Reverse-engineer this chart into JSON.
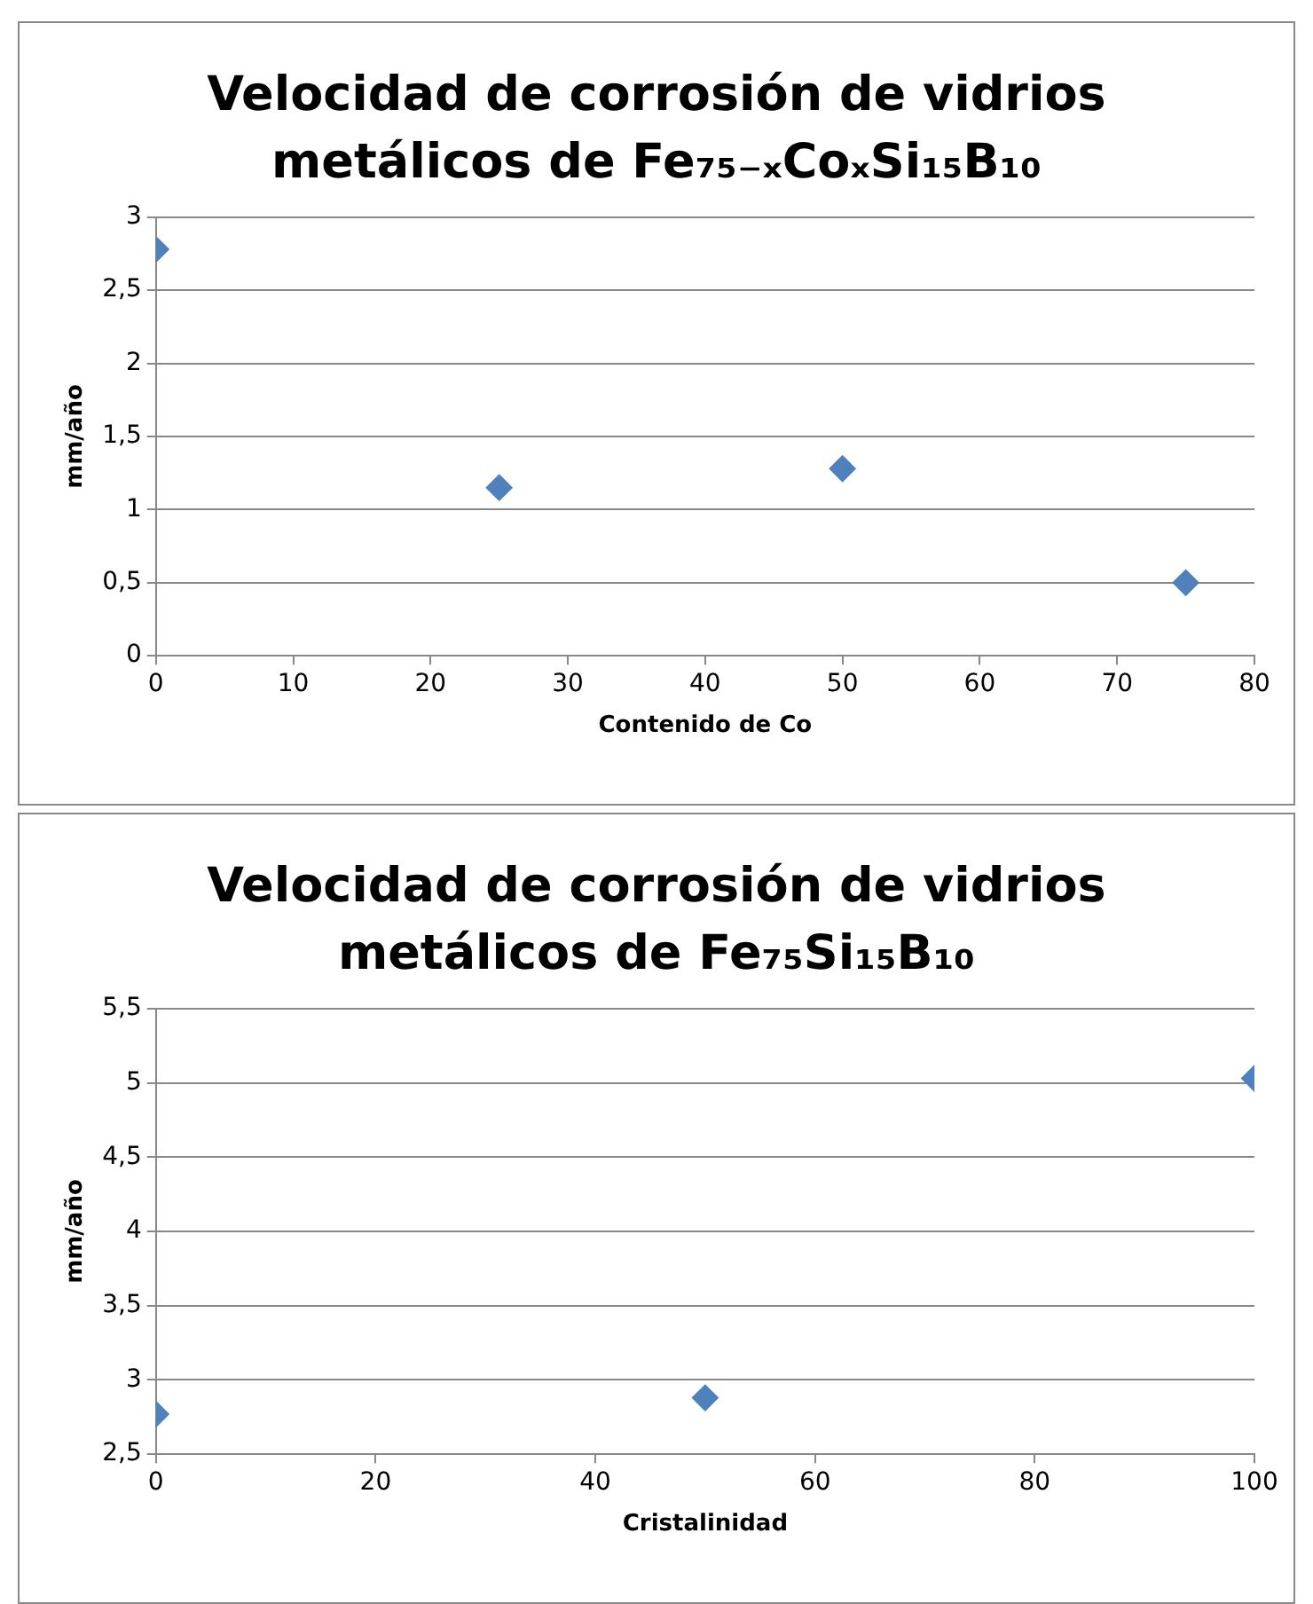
{
  "chart_data": [
    {
      "type": "scatter",
      "title": "Velocidad de corrosión de vidrios metálicos de Fe₇₅₋ₓCoₓSi₁₅B₁₀",
      "xlabel": "Contenido de Co",
      "ylabel": "mm/año",
      "marker": "diamond",
      "grid": "y",
      "legend": false,
      "series": [
        {
          "color": "#4f81bd",
          "x": [
            0,
            25,
            50,
            75
          ],
          "values": [
            2.78,
            1.15,
            1.28,
            0.5
          ]
        }
      ],
      "xlim": [
        0,
        80
      ],
      "xticks": [
        0,
        10,
        20,
        30,
        40,
        50,
        60,
        70,
        80
      ],
      "ylim": [
        0,
        3
      ],
      "yticks": [
        0,
        {
          "value": 0.5,
          "label": "0,5"
        },
        1,
        {
          "value": 1.5,
          "label": "1,5"
        },
        2,
        {
          "value": 2.5,
          "label": "2,5"
        },
        3
      ]
    },
    {
      "type": "scatter",
      "title": "Velocidad de corrosión de vidrios metálicos de Fe₇₅Si₁₅B₁₀",
      "xlabel": "Cristalinidad",
      "ylabel": "mm/año",
      "marker": "diamond",
      "grid": "y",
      "legend": false,
      "series": [
        {
          "color": "#4f81bd",
          "x": [
            0,
            50,
            100
          ],
          "values": [
            2.77,
            2.88,
            5.03
          ]
        }
      ],
      "xlim": [
        0,
        100
      ],
      "xticks": [
        0,
        20,
        40,
        60,
        80,
        100
      ],
      "ylim": [
        2.5,
        5.5
      ],
      "yticks": [
        {
          "value": 2.5,
          "label": "2,5"
        },
        3,
        {
          "value": 3.5,
          "label": "3,5"
        },
        4,
        {
          "value": 4.5,
          "label": "4,5"
        },
        5,
        {
          "value": 5.5,
          "label": "5,5"
        }
      ]
    }
  ]
}
